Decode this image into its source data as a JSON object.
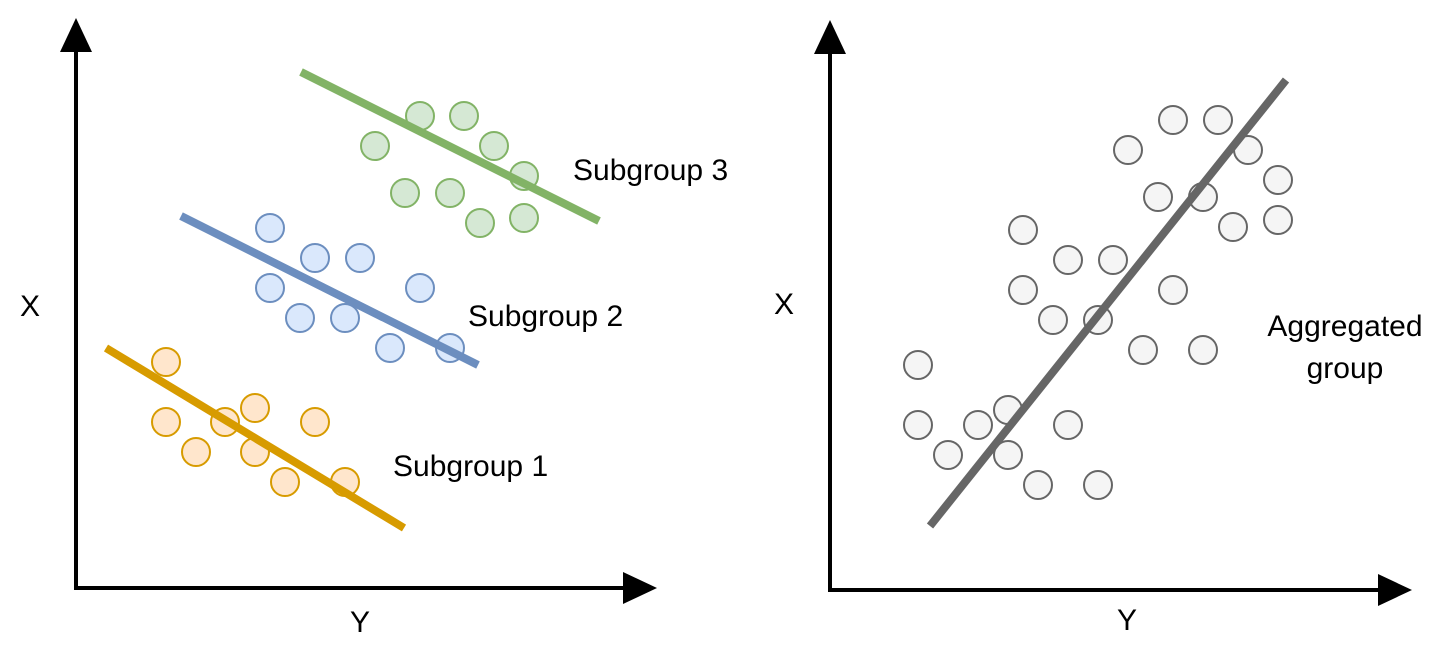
{
  "left_panel": {
    "x_axis_label": "Y",
    "y_axis_label": "X",
    "groups": [
      {
        "label": "Subgroup 1",
        "line_color": "#d79b00",
        "fill_color": "#ffe6cc",
        "stroke_color": "#d79b00"
      },
      {
        "label": "Subgroup 2",
        "line_color": "#6c8ebf",
        "fill_color": "#dae8fc",
        "stroke_color": "#6c8ebf"
      },
      {
        "label": "Subgroup 3",
        "line_color": "#82b366",
        "fill_color": "#d5e8d4",
        "stroke_color": "#82b366"
      }
    ]
  },
  "right_panel": {
    "x_axis_label": "Y",
    "y_axis_label": "X",
    "group_label_line1": "Aggregated",
    "group_label_line2": "group",
    "line_color": "#666666",
    "fill_color": "#f5f5f5",
    "stroke_color": "#666666"
  }
}
